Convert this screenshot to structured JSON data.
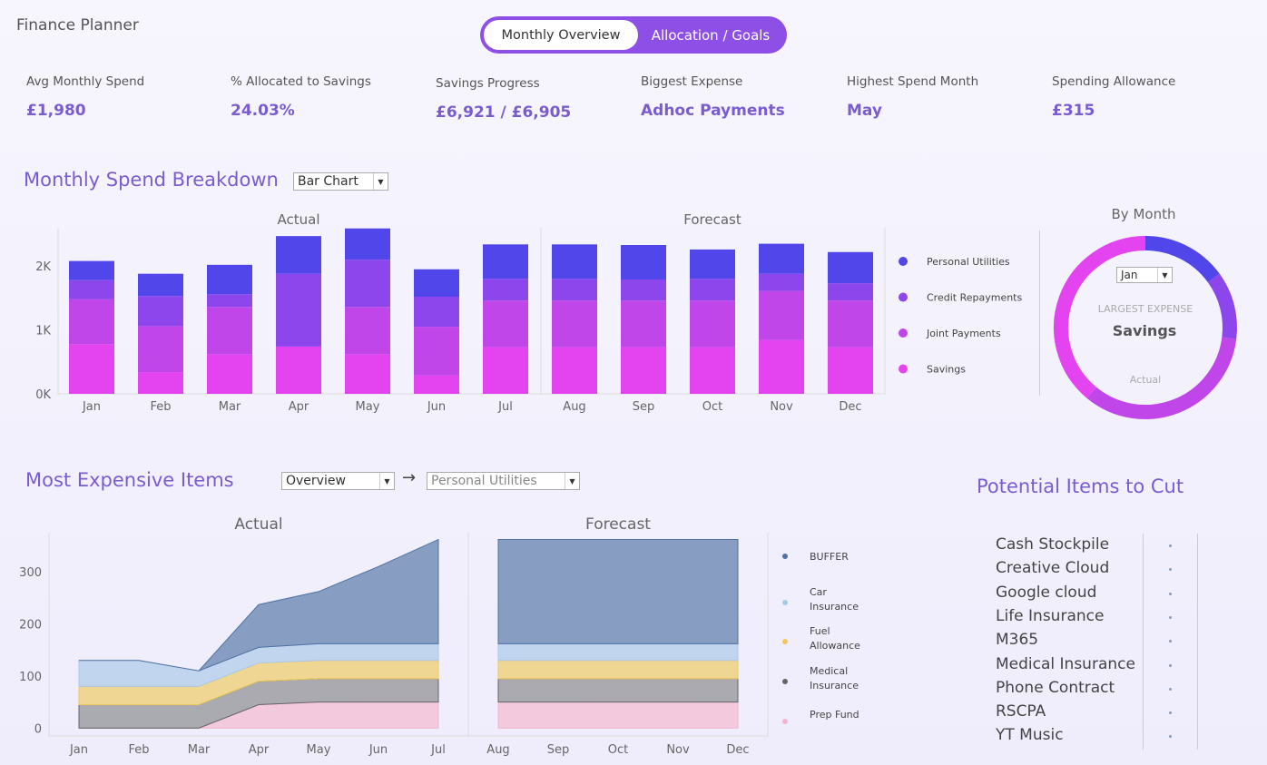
{
  "app": {
    "title": "Finance Planner"
  },
  "toggle": {
    "active": "Monthly Overview",
    "inactive": "Allocation / Goals"
  },
  "kpis": [
    {
      "label": "Avg Monthly Spend",
      "value": "£1,980"
    },
    {
      "label": "% Allocated to Savings",
      "value": "24.03%"
    },
    {
      "label": "Savings Progress",
      "value": "£6,921 / £6,905"
    },
    {
      "label": "Biggest Expense",
      "value": "Adhoc Payments"
    },
    {
      "label": "Highest Spend Month",
      "value": "May"
    },
    {
      "label": "Spending Allowance",
      "value": "£315"
    }
  ],
  "spend": {
    "title": "Monthly Spend Breakdown",
    "chart_type_select": "Bar Chart",
    "actual_label": "Actual",
    "forecast_label": "Forecast",
    "legend": [
      {
        "name": "Personal Utilities",
        "color": "#5146ea"
      },
      {
        "name": "Credit Repayments",
        "color": "#8d45ec"
      },
      {
        "name": "Joint Payments",
        "color": "#c046ea"
      },
      {
        "name": "Savings",
        "color": "#e444ef"
      }
    ]
  },
  "donut": {
    "title": "By Month",
    "month_select": "Jan",
    "caption": "LARGEST EXPENSE",
    "value": "Savings",
    "sub": "Actual"
  },
  "items": {
    "title": "Most Expensive Items",
    "select1": "Overview",
    "arrow": "→",
    "select2": "Personal Utilities",
    "actual_label": "Actual",
    "forecast_label": "Forecast",
    "legend": [
      {
        "name": "BUFFER",
        "color": "#4f72a3"
      },
      {
        "name": "Car Insurance",
        "color": "#a9c8e8"
      },
      {
        "name": "Fuel Allowance",
        "color": "#eec95a"
      },
      {
        "name": "Medical Insurance",
        "color": "#666666"
      },
      {
        "name": "Prep Fund",
        "color": "#f2b6cc"
      }
    ]
  },
  "cut": {
    "title": "Potential Items to Cut",
    "items": [
      "Cash Stockpile",
      "Creative Cloud",
      "Google cloud",
      "Life Insurance",
      "M365",
      "Medical Insurance",
      "Phone Contract",
      "RSCPA",
      "YT Music"
    ]
  },
  "chart_data": [
    {
      "type": "bar",
      "stacked": true,
      "categories": [
        "Jan",
        "Feb",
        "Mar",
        "Apr",
        "May",
        "Jun",
        "Jul",
        "Aug",
        "Sep",
        "Oct",
        "Nov",
        "Dec"
      ],
      "actual_months": 7,
      "yticks": [
        0,
        1000,
        2000
      ],
      "ytick_labels": [
        "0K",
        "1K",
        "2K"
      ],
      "ylim": [
        0,
        2600
      ],
      "series": [
        {
          "name": "Savings",
          "values": [
            780,
            340,
            620,
            740,
            620,
            290,
            730,
            730,
            730,
            730,
            840,
            730
          ]
        },
        {
          "name": "Joint Payments",
          "values": [
            700,
            720,
            740,
            0,
            740,
            760,
            730,
            730,
            730,
            730,
            770,
            730
          ]
        },
        {
          "name": "Credit Repayments",
          "values": [
            300,
            470,
            200,
            1140,
            740,
            470,
            340,
            340,
            330,
            340,
            270,
            270
          ]
        },
        {
          "name": "Personal Utilities",
          "values": [
            300,
            350,
            460,
            590,
            490,
            430,
            540,
            540,
            540,
            460,
            470,
            490
          ]
        }
      ]
    },
    {
      "type": "pie",
      "title": "By Month",
      "slices": [
        {
          "name": "Personal Utilities",
          "value": 15
        },
        {
          "name": "Credit Repayments",
          "value": 12
        },
        {
          "name": "Joint Payments",
          "value": 34
        },
        {
          "name": "Savings",
          "value": 39
        }
      ]
    },
    {
      "type": "area",
      "stacked": true,
      "categories": [
        "Jan",
        "Feb",
        "Mar",
        "Apr",
        "May",
        "Jun",
        "Jul",
        "Aug",
        "Sep",
        "Oct",
        "Nov",
        "Dec"
      ],
      "actual_months": 7,
      "yticks": [
        0,
        100,
        200,
        300
      ],
      "ylim": [
        -15,
        375
      ],
      "series": [
        {
          "name": "Prep Fund",
          "values": [
            0,
            0,
            0,
            45,
            50,
            50,
            50,
            50,
            50,
            50,
            50,
            50
          ]
        },
        {
          "name": "Medical Insurance",
          "values": [
            45,
            45,
            45,
            45,
            45,
            45,
            45,
            45,
            45,
            45,
            45,
            45
          ]
        },
        {
          "name": "Fuel Allowance",
          "values": [
            35,
            35,
            35,
            35,
            35,
            35,
            35,
            35,
            35,
            35,
            35,
            35
          ]
        },
        {
          "name": "Car Insurance",
          "values": [
            50,
            50,
            30,
            30,
            32,
            32,
            32,
            32,
            32,
            32,
            32,
            32
          ]
        },
        {
          "name": "BUFFER",
          "values": [
            0,
            0,
            0,
            82,
            100,
            148,
            200,
            200,
            200,
            200,
            200,
            200
          ]
        }
      ]
    }
  ]
}
